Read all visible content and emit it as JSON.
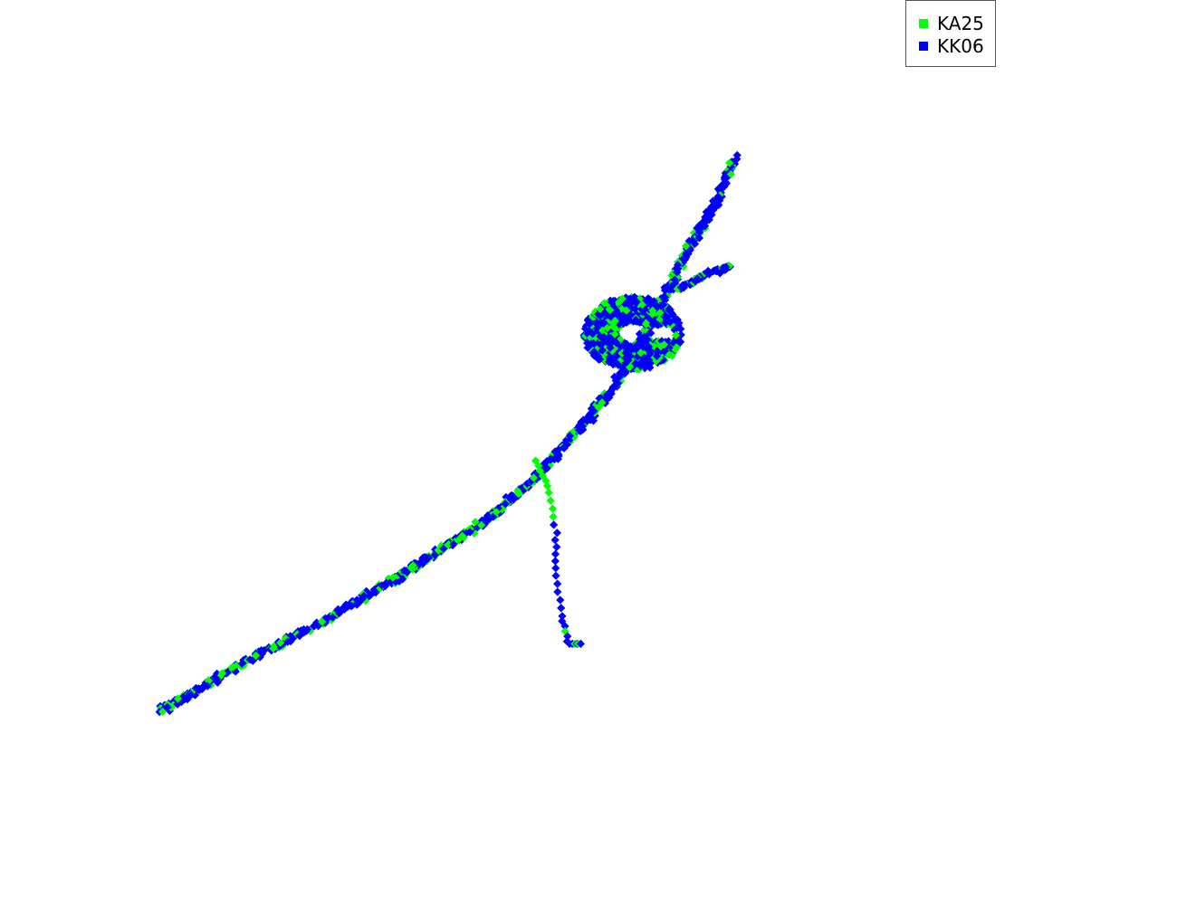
{
  "chart_data": {
    "type": "scatter",
    "title": "",
    "xlabel": "",
    "ylabel": "",
    "axes_visible": false,
    "grid": false,
    "legend": {
      "placement": "top-right"
    },
    "marker": "diamond",
    "xlim": [
      0,
      100
    ],
    "ylim": [
      0,
      100
    ],
    "series": [
      {
        "name": "KA25",
        "color": "#00ff00"
      },
      {
        "name": "KK06",
        "color": "#0000ff"
      }
    ],
    "structure": {
      "main_branch": [
        [
          0,
          0
        ],
        [
          12,
          8
        ],
        [
          25,
          16
        ],
        [
          38,
          25
        ],
        [
          50,
          34
        ],
        [
          58,
          42
        ],
        [
          64,
          50
        ],
        [
          70,
          58
        ],
        [
          74,
          66
        ],
        [
          78,
          75
        ],
        [
          82,
          84
        ],
        [
          86,
          92
        ],
        [
          89,
          100
        ]
      ],
      "cluster": {
        "center": [
          73,
          68
        ],
        "radius": [
          7,
          6
        ],
        "hole_center": [
          77,
          68
        ]
      },
      "side_arm": [
        [
          80,
          76
        ],
        [
          85,
          79
        ],
        [
          88,
          80
        ]
      ],
      "spur": [
        [
          58,
          45
        ],
        [
          60,
          40
        ],
        [
          61,
          32
        ],
        [
          61,
          25
        ],
        [
          62,
          17
        ],
        [
          63,
          12
        ],
        [
          65,
          12
        ]
      ]
    }
  }
}
